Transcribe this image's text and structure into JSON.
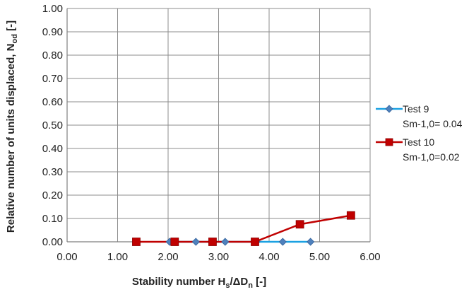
{
  "chart_data": {
    "type": "scatter",
    "xlabel": {
      "main": "Stability number H",
      "sub1": "s",
      "mid": "/ΔD",
      "sub2": "n",
      "tail": " [-]"
    },
    "ylabel": {
      "main": "Relative number of  units displaced, N",
      "sub": "od",
      "tail": " [-]"
    },
    "xlim": [
      0,
      6
    ],
    "ylim": [
      0,
      1
    ],
    "x_ticks": [
      "0.00",
      "1.00",
      "2.00",
      "3.00",
      "4.00",
      "5.00",
      "6.00"
    ],
    "y_ticks": [
      "0.00",
      "0.10",
      "0.20",
      "0.30",
      "0.40",
      "0.50",
      "0.60",
      "0.70",
      "0.80",
      "0.90",
      "1.00"
    ],
    "grid": true,
    "legend_position": "right",
    "series": [
      {
        "name": "Test 9",
        "subtitle": "Sm-1,0= 0.04",
        "color": "#1ba1e2",
        "marker": "diamond",
        "marker_color": "#4f81bd",
        "points": [
          {
            "x": 2.03,
            "y": 0.0
          },
          {
            "x": 2.55,
            "y": 0.0
          },
          {
            "x": 3.13,
            "y": 0.0
          },
          {
            "x": 3.75,
            "y": 0.0
          },
          {
            "x": 4.27,
            "y": 0.0
          },
          {
            "x": 4.82,
            "y": 0.0
          }
        ]
      },
      {
        "name": "Test 10",
        "subtitle": "Sm-1,0=0.02",
        "color": "#c00000",
        "marker": "square",
        "marker_color": "#c00000",
        "points": [
          {
            "x": 1.37,
            "y": 0.0
          },
          {
            "x": 2.13,
            "y": 0.0
          },
          {
            "x": 2.88,
            "y": 0.0
          },
          {
            "x": 3.72,
            "y": 0.0
          },
          {
            "x": 4.61,
            "y": 0.075
          },
          {
            "x": 5.62,
            "y": 0.113
          }
        ]
      }
    ]
  }
}
